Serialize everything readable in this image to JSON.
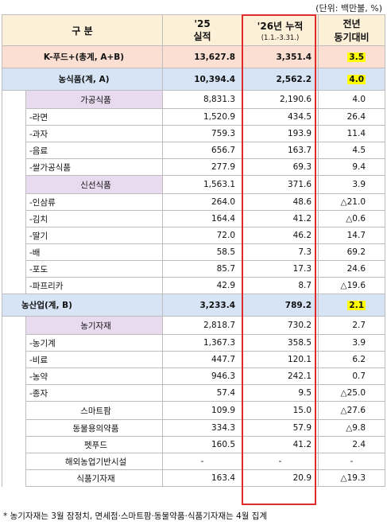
{
  "unit_note": "(단위: 백만불, %)",
  "header": {
    "col1": "구 분",
    "col2_line1": "'25",
    "col2_line2": "실적",
    "col3_line1": "'26년 누적",
    "col3_line2": "(1.1.-3.31.)",
    "col4_line1": "전년",
    "col4_line2": "동기대비"
  },
  "rows": {
    "total": {
      "label": "K-푸드+(총계, A+B)",
      "v1": "13,627.8",
      "v2": "3,351.4",
      "v3": "3.5"
    },
    "agri": {
      "label": "농식품(계, A)",
      "v1": "10,394.4",
      "v2": "2,562.2",
      "v3": "4.0"
    },
    "processed": {
      "label": "가공식품",
      "v1": "8,831.3",
      "v2": "2,190.6",
      "v3": "4.0"
    },
    "processed_items": [
      {
        "label": "-라면",
        "v1": "1,520.9",
        "v2": "434.5",
        "v3": "26.4"
      },
      {
        "label": "-과자",
        "v1": "759.3",
        "v2": "193.9",
        "v3": "11.4"
      },
      {
        "label": "-음료",
        "v1": "656.7",
        "v2": "163.7",
        "v3": "4.5"
      },
      {
        "label": "-쌀가공식품",
        "v1": "277.9",
        "v2": "69.3",
        "v3": "9.4"
      }
    ],
    "fresh": {
      "label": "신선식품",
      "v1": "1,563.1",
      "v2": "371.6",
      "v3": "3.9"
    },
    "fresh_items": [
      {
        "label": "-인삼류",
        "v1": "264.0",
        "v2": "48.6",
        "v3": "△21.0"
      },
      {
        "label": "-김치",
        "v1": "164.4",
        "v2": "41.2",
        "v3": "△0.6"
      },
      {
        "label": "-딸기",
        "v1": "72.0",
        "v2": "46.2",
        "v3": "14.7"
      },
      {
        "label": "-배",
        "v1": "58.5",
        "v2": "7.3",
        "v3": "69.2"
      },
      {
        "label": "-포도",
        "v1": "85.7",
        "v2": "17.3",
        "v3": "24.6"
      },
      {
        "label": "-파프리카",
        "v1": "42.9",
        "v2": "8.7",
        "v3": "△19.6"
      }
    ],
    "industry": {
      "label": "농산업(계, B)",
      "v1": "3,233.4",
      "v2": "789.2",
      "v3": "2.1"
    },
    "materials": {
      "label": "농기자재",
      "v1": "2,818.7",
      "v2": "730.2",
      "v3": "2.7"
    },
    "materials_items": [
      {
        "label": "-농기계",
        "v1": "1,367.3",
        "v2": "358.5",
        "v3": "3.9"
      },
      {
        "label": "-비료",
        "v1": "447.7",
        "v2": "120.1",
        "v3": "6.2"
      },
      {
        "label": "-농약",
        "v1": "946.3",
        "v2": "242.1",
        "v3": "0.7"
      },
      {
        "label": "-종자",
        "v1": "57.4",
        "v2": "9.5",
        "v3": "△25.0"
      }
    ],
    "misc_items": [
      {
        "label": "스마트팜",
        "v1": "109.9",
        "v2": "15.0",
        "v3": "△27.6"
      },
      {
        "label": "동물용의약품",
        "v1": "334.3",
        "v2": "57.9",
        "v3": "△9.8"
      },
      {
        "label": "펫푸드",
        "v1": "160.5",
        "v2": "41.2",
        "v3": "2.4"
      },
      {
        "label": "해외농업기반시설",
        "v1": "-",
        "v2": "-",
        "v3": "-"
      },
      {
        "label": "식품기자재",
        "v1": "163.4",
        "v2": "20.9",
        "v3": "△19.3"
      }
    ]
  },
  "footnote": "* 농기자재는 3월 잠정치, 면세점·스마트팜·동물약품·식품기자재는 4월 집계",
  "colors": {
    "header": "#fdf0d8",
    "total": "#fbdfd3",
    "category": "#d6e4f5",
    "subcategory": "#e8dbf0",
    "highlight": "#ffff00",
    "frame": "#e02b2b"
  }
}
